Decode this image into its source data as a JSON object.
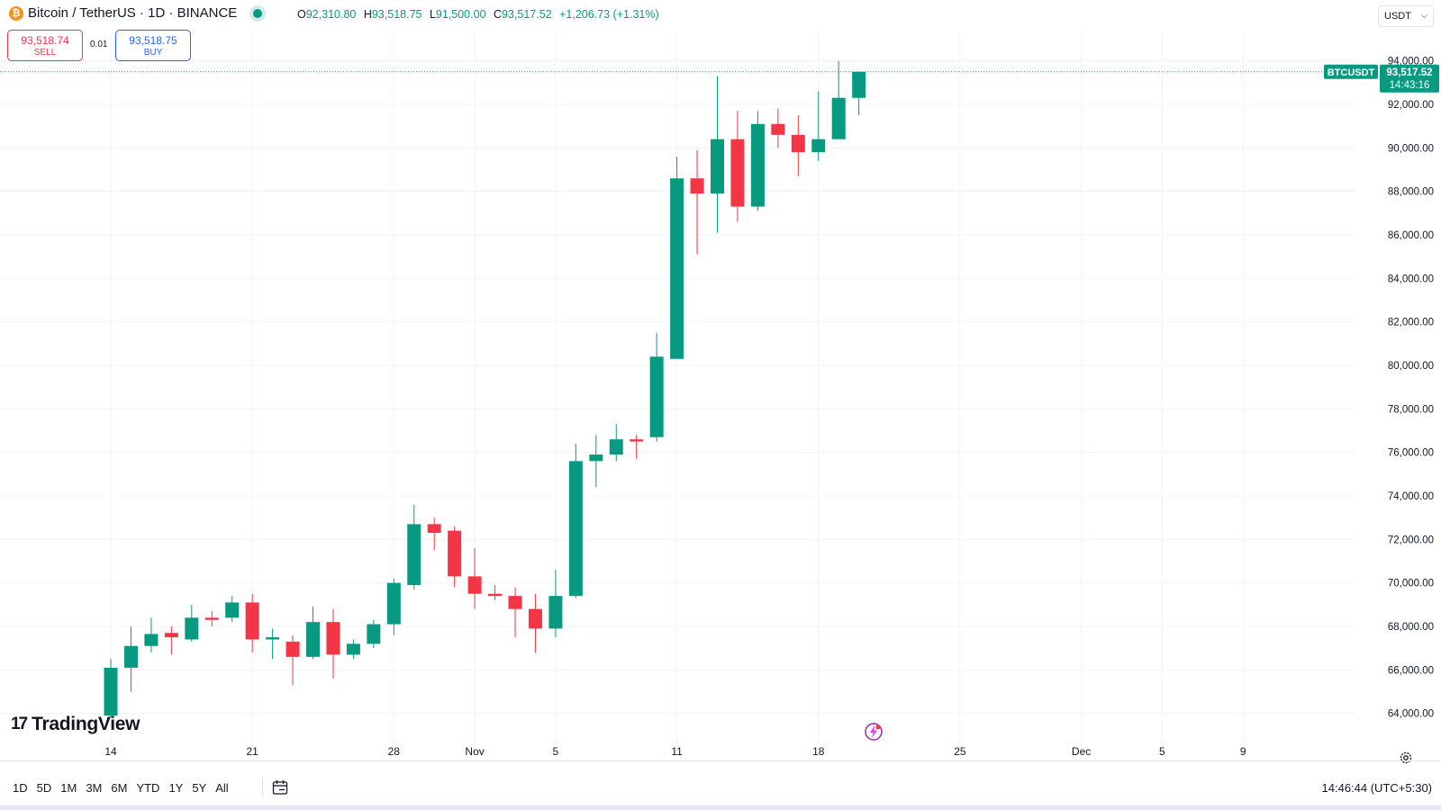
{
  "header": {
    "symbol_title": "Bitcoin / TetherUS · 1D · BINANCE",
    "coin_glyph": "₿",
    "ohlc": {
      "o_label": "O",
      "o_value": "92,310.80",
      "h_label": "H",
      "h_value": "93,518.75",
      "l_label": "L",
      "l_value": "91,500.00",
      "c_label": "C",
      "c_value": "93,517.52",
      "change": "+1,206.73 (+1.31%)"
    },
    "currency_select": "USDT"
  },
  "trade": {
    "sell_price": "93,518.74",
    "sell_label": "SELL",
    "spread": "0.01",
    "buy_price": "93,518.75",
    "buy_label": "BUY"
  },
  "price_tag": {
    "symbol": "BTCUSDT",
    "price": "93,517.52",
    "countdown": "14:43:16"
  },
  "watermark": {
    "logo_mark": "17",
    "logo_text": "TradingView"
  },
  "bottom": {
    "ranges": [
      "1D",
      "5D",
      "1M",
      "3M",
      "6M",
      "YTD",
      "1Y",
      "5Y",
      "All"
    ],
    "clock": "14:46:44 (UTC+5:30)"
  },
  "colors": {
    "up": "#089981",
    "down": "#f23645",
    "grid": "#f0f3fa",
    "tag_bg": "#089981"
  },
  "chart_data": {
    "type": "candlestick",
    "y_unit": "USDT",
    "y_range": [
      63200,
      94400
    ],
    "y_ticks": [
      "64,000.00",
      "66,000.00",
      "68,000.00",
      "70,000.00",
      "72,000.00",
      "74,000.00",
      "76,000.00",
      "78,000.00",
      "80,000.00",
      "82,000.00",
      "84,000.00",
      "86,000.00",
      "88,000.00",
      "90,000.00",
      "92,000.00",
      "94,000.00"
    ],
    "y_tick_values": [
      64000,
      66000,
      68000,
      70000,
      72000,
      74000,
      76000,
      78000,
      80000,
      82000,
      84000,
      86000,
      88000,
      90000,
      92000,
      94000
    ],
    "x_ticks": [
      {
        "label": "14",
        "day": 0
      },
      {
        "label": "21",
        "day": 7
      },
      {
        "label": "28",
        "day": 14
      },
      {
        "label": "Nov",
        "day": 18
      },
      {
        "label": "5",
        "day": 22
      },
      {
        "label": "11",
        "day": 28
      },
      {
        "label": "18",
        "day": 35
      },
      {
        "label": "25",
        "day": 42
      },
      {
        "label": "Dec",
        "day": 48
      },
      {
        "label": "5",
        "day": 52
      },
      {
        "label": "9",
        "day": 56
      }
    ],
    "first_candle_date": "Oct 14",
    "grid": true,
    "candles": [
      {
        "o": 63900,
        "h": 66500,
        "l": 63800,
        "c": 66100
      },
      {
        "o": 66100,
        "h": 68000,
        "l": 65000,
        "c": 67100
      },
      {
        "o": 67100,
        "h": 68400,
        "l": 66800,
        "c": 67650
      },
      {
        "o": 67700,
        "h": 68000,
        "l": 66700,
        "c": 67500
      },
      {
        "o": 67400,
        "h": 69000,
        "l": 67300,
        "c": 68400
      },
      {
        "o": 68400,
        "h": 68700,
        "l": 68000,
        "c": 68300
      },
      {
        "o": 68400,
        "h": 69400,
        "l": 68200,
        "c": 69100
      },
      {
        "o": 69100,
        "h": 69500,
        "l": 66800,
        "c": 67400
      },
      {
        "o": 67400,
        "h": 67900,
        "l": 66500,
        "c": 67500
      },
      {
        "o": 67300,
        "h": 67600,
        "l": 65300,
        "c": 66600
      },
      {
        "o": 66600,
        "h": 68900,
        "l": 66500,
        "c": 68200
      },
      {
        "o": 68200,
        "h": 68800,
        "l": 65600,
        "c": 66700
      },
      {
        "o": 66700,
        "h": 67400,
        "l": 66500,
        "c": 67200
      },
      {
        "o": 67200,
        "h": 68300,
        "l": 67000,
        "c": 68100
      },
      {
        "o": 68100,
        "h": 70200,
        "l": 67600,
        "c": 70000
      },
      {
        "o": 69900,
        "h": 73600,
        "l": 69700,
        "c": 72700
      },
      {
        "o": 72700,
        "h": 73000,
        "l": 71500,
        "c": 72300
      },
      {
        "o": 72400,
        "h": 72600,
        "l": 69800,
        "c": 70300
      },
      {
        "o": 70300,
        "h": 71600,
        "l": 68800,
        "c": 69500
      },
      {
        "o": 69500,
        "h": 69900,
        "l": 69200,
        "c": 69400
      },
      {
        "o": 69400,
        "h": 69800,
        "l": 67500,
        "c": 68800
      },
      {
        "o": 68800,
        "h": 69500,
        "l": 66800,
        "c": 67900
      },
      {
        "o": 67900,
        "h": 70600,
        "l": 67500,
        "c": 69400
      },
      {
        "o": 69400,
        "h": 76400,
        "l": 69300,
        "c": 75600
      },
      {
        "o": 75600,
        "h": 76800,
        "l": 74400,
        "c": 75900
      },
      {
        "o": 75900,
        "h": 77300,
        "l": 75600,
        "c": 76600
      },
      {
        "o": 76600,
        "h": 76800,
        "l": 75700,
        "c": 76500
      },
      {
        "o": 76700,
        "h": 81500,
        "l": 76500,
        "c": 80400
      },
      {
        "o": 80300,
        "h": 89600,
        "l": 80300,
        "c": 88600
      },
      {
        "o": 88600,
        "h": 89900,
        "l": 85100,
        "c": 87900
      },
      {
        "o": 87900,
        "h": 93300,
        "l": 86100,
        "c": 90400
      },
      {
        "o": 90400,
        "h": 91700,
        "l": 86600,
        "c": 87300
      },
      {
        "o": 87300,
        "h": 91700,
        "l": 87100,
        "c": 91100
      },
      {
        "o": 91100,
        "h": 91800,
        "l": 90000,
        "c": 90600
      },
      {
        "o": 90600,
        "h": 91500,
        "l": 88700,
        "c": 89800
      },
      {
        "o": 89800,
        "h": 92600,
        "l": 89400,
        "c": 90400
      },
      {
        "o": 90400,
        "h": 94000,
        "l": 90400,
        "c": 92300
      },
      {
        "o": 92300,
        "h": 93500,
        "l": 91500,
        "c": 93500
      }
    ]
  }
}
